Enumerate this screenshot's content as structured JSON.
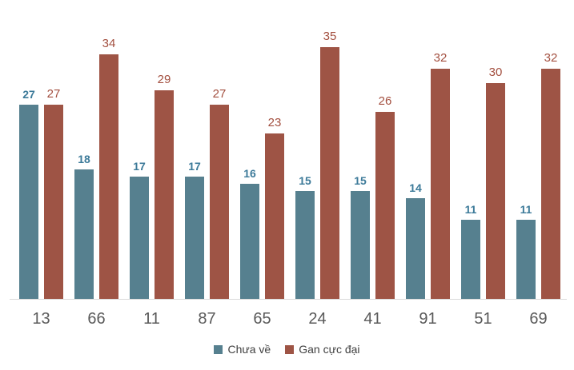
{
  "chart_data": {
    "type": "bar",
    "title": "",
    "xlabel": "",
    "ylabel": "",
    "categories": [
      "13",
      "66",
      "11",
      "87",
      "65",
      "24",
      "41",
      "91",
      "51",
      "69"
    ],
    "series": [
      {
        "name": "Chưa về",
        "color": "#56808F",
        "label_color": "#3C7A99",
        "values": [
          27,
          18,
          17,
          17,
          16,
          15,
          15,
          14,
          11,
          11
        ]
      },
      {
        "name": "Gan cực đại",
        "color": "#9E5445",
        "label_color": "#A34F3F",
        "values": [
          27,
          34,
          29,
          27,
          23,
          35,
          26,
          32,
          30,
          32
        ]
      }
    ],
    "ylim": [
      0,
      35
    ],
    "grid": false,
    "data_labels": true,
    "legend_position": "bottom",
    "axis_line_color": "#D9D9D9",
    "tick_label_color": "#595959"
  }
}
